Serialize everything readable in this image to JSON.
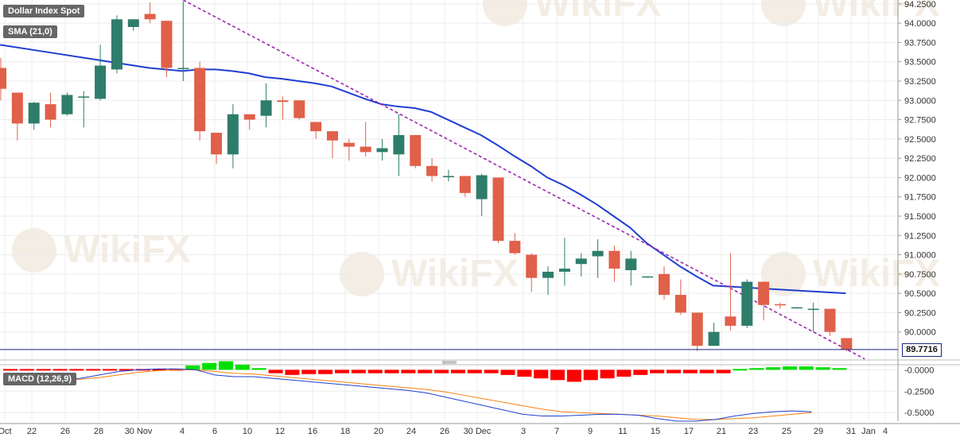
{
  "labels": {
    "main_title": "Dollar Index Spot",
    "sma_label": "SMA (21,0)",
    "macd_label": "MACD (12,26,9)",
    "last_price": "89.7716"
  },
  "colors": {
    "up": "#2e7d6b",
    "down": "#e0604a",
    "sma": "#1f3fd1",
    "trendline": "#9c27b0",
    "macd_line": "#1f3fd1",
    "signal_line": "#ff7f0e",
    "hist_pos": "#00e000",
    "hist_neg": "#ff0000",
    "last_price_line": "#1a237e",
    "grid": "#ececec",
    "watermark": "#f3ede4"
  },
  "watermark": "WikiFX",
  "chart_data": [
    {
      "type": "candlestick",
      "title": "Dollar Index Spot",
      "ylim": [
        89.75,
        94.3
      ],
      "yticks": [
        "94.2500",
        "94.0000",
        "93.7500",
        "93.5000",
        "93.2500",
        "93.0000",
        "92.7500",
        "92.5000",
        "92.2500",
        "92.0000",
        "91.7500",
        "91.5000",
        "91.2500",
        "91.0000",
        "90.7500",
        "90.5000",
        "90.2500",
        "90.0000"
      ],
      "x_tick_labels": [
        "Oct",
        "22",
        "26",
        "28",
        "30 Nov",
        "4",
        "6",
        "10",
        "12",
        "16",
        "18",
        "20",
        "24",
        "26",
        "30 Dec",
        "3",
        "7",
        "9",
        "11",
        "15",
        "17",
        "21",
        "23",
        "25",
        "29",
        "31",
        "Jan",
        "4"
      ],
      "last_price": 89.7716,
      "candles": [
        {
          "o": 93.42,
          "h": 93.55,
          "l": 93.0,
          "c": 93.15
        },
        {
          "o": 93.1,
          "h": 93.1,
          "l": 92.48,
          "c": 92.7
        },
        {
          "o": 92.7,
          "h": 92.98,
          "l": 92.62,
          "c": 92.97
        },
        {
          "o": 92.95,
          "h": 93.1,
          "l": 92.65,
          "c": 92.75
        },
        {
          "o": 92.82,
          "h": 93.1,
          "l": 92.8,
          "c": 93.07
        },
        {
          "o": 93.05,
          "h": 93.12,
          "l": 92.65,
          "c": 93.05
        },
        {
          "o": 93.02,
          "h": 93.72,
          "l": 93.0,
          "c": 93.45
        },
        {
          "o": 93.4,
          "h": 94.1,
          "l": 93.35,
          "c": 94.05
        },
        {
          "o": 93.95,
          "h": 94.05,
          "l": 93.9,
          "c": 94.05
        },
        {
          "o": 94.12,
          "h": 94.27,
          "l": 94.0,
          "c": 94.05
        },
        {
          "o": 94.03,
          "h": 94.03,
          "l": 93.3,
          "c": 93.42
        },
        {
          "o": 93.42,
          "h": 94.28,
          "l": 93.25,
          "c": 93.42
        },
        {
          "o": 93.42,
          "h": 93.5,
          "l": 92.48,
          "c": 92.6
        },
        {
          "o": 92.58,
          "h": 92.58,
          "l": 92.18,
          "c": 92.3
        },
        {
          "o": 92.3,
          "h": 92.95,
          "l": 92.12,
          "c": 92.82
        },
        {
          "o": 92.82,
          "h": 92.82,
          "l": 92.62,
          "c": 92.75
        },
        {
          "o": 92.8,
          "h": 93.22,
          "l": 92.65,
          "c": 93.0
        },
        {
          "o": 93.0,
          "h": 93.05,
          "l": 92.75,
          "c": 92.98
        },
        {
          "o": 93.0,
          "h": 93.0,
          "l": 92.75,
          "c": 92.77
        },
        {
          "o": 92.72,
          "h": 92.72,
          "l": 92.5,
          "c": 92.6
        },
        {
          "o": 92.6,
          "h": 92.6,
          "l": 92.25,
          "c": 92.48
        },
        {
          "o": 92.45,
          "h": 92.5,
          "l": 92.22,
          "c": 92.4
        },
        {
          "o": 92.4,
          "h": 92.72,
          "l": 92.27,
          "c": 92.33
        },
        {
          "o": 92.33,
          "h": 92.5,
          "l": 92.22,
          "c": 92.38
        },
        {
          "o": 92.3,
          "h": 92.82,
          "l": 92.02,
          "c": 92.55
        },
        {
          "o": 92.55,
          "h": 92.55,
          "l": 92.12,
          "c": 92.15
        },
        {
          "o": 92.15,
          "h": 92.25,
          "l": 91.95,
          "c": 92.02
        },
        {
          "o": 92.02,
          "h": 92.1,
          "l": 91.95,
          "c": 92.02
        },
        {
          "o": 92.02,
          "h": 92.02,
          "l": 91.75,
          "c": 91.8
        },
        {
          "o": 91.72,
          "h": 92.05,
          "l": 91.5,
          "c": 92.03
        },
        {
          "o": 92.0,
          "h": 92.0,
          "l": 91.15,
          "c": 91.18
        },
        {
          "o": 91.18,
          "h": 91.28,
          "l": 91.0,
          "c": 91.02
        },
        {
          "o": 91.0,
          "h": 91.02,
          "l": 90.52,
          "c": 90.7
        },
        {
          "o": 90.7,
          "h": 90.85,
          "l": 90.48,
          "c": 90.78
        },
        {
          "o": 90.78,
          "h": 91.22,
          "l": 90.6,
          "c": 90.82
        },
        {
          "o": 90.88,
          "h": 91.02,
          "l": 90.72,
          "c": 90.95
        },
        {
          "o": 90.98,
          "h": 91.2,
          "l": 90.7,
          "c": 91.05
        },
        {
          "o": 91.05,
          "h": 91.12,
          "l": 90.65,
          "c": 90.82
        },
        {
          "o": 90.8,
          "h": 91.05,
          "l": 90.6,
          "c": 90.95
        },
        {
          "o": 90.72,
          "h": 90.72,
          "l": 90.7,
          "c": 90.72
        },
        {
          "o": 90.75,
          "h": 90.85,
          "l": 90.42,
          "c": 90.48
        },
        {
          "o": 90.48,
          "h": 90.68,
          "l": 90.22,
          "c": 90.25
        },
        {
          "o": 90.25,
          "h": 90.25,
          "l": 89.75,
          "c": 89.82
        },
        {
          "o": 89.82,
          "h": 90.12,
          "l": 89.82,
          "c": 90.0
        },
        {
          "o": 90.2,
          "h": 91.02,
          "l": 90.02,
          "c": 90.08
        },
        {
          "o": 90.08,
          "h": 90.68,
          "l": 90.05,
          "c": 90.65
        },
        {
          "o": 90.65,
          "h": 90.65,
          "l": 90.15,
          "c": 90.35
        },
        {
          "o": 90.36,
          "h": 90.38,
          "l": 90.3,
          "c": 90.35
        },
        {
          "o": 90.32,
          "h": 90.32,
          "l": 90.3,
          "c": 90.32
        },
        {
          "o": 90.3,
          "h": 90.38,
          "l": 90.0,
          "c": 90.3
        },
        {
          "o": 90.3,
          "h": 90.3,
          "l": 89.95,
          "c": 90.0
        },
        {
          "o": 89.92,
          "h": 89.92,
          "l": 89.75,
          "c": 89.77
        }
      ],
      "sma_21": [
        93.72,
        93.62,
        93.52,
        93.42,
        93.38,
        93.4,
        93.4,
        93.38,
        93.35,
        93.3,
        93.28,
        93.25,
        93.22,
        93.18,
        93.1,
        93.02,
        92.95,
        92.92,
        92.9,
        92.85,
        92.75,
        92.65,
        92.55,
        92.42,
        92.28,
        92.15,
        92.0,
        91.9,
        91.78,
        91.65,
        91.5,
        91.35,
        91.15,
        91.0,
        90.85,
        90.72,
        90.6,
        90.5
      ],
      "sma_x_index": [
        0,
        3,
        6,
        9,
        11,
        12,
        13,
        14,
        15,
        16,
        17,
        18,
        19,
        20,
        21,
        22,
        23,
        24,
        25,
        26,
        27,
        28,
        29,
        30,
        31,
        32,
        33,
        34,
        35,
        36,
        37,
        38,
        39,
        40,
        41,
        42,
        43,
        51
      ],
      "trendline": {
        "from_index": 11,
        "from_value": 94.3,
        "to_index": 52,
        "to_value": 89.65
      }
    },
    {
      "type": "bar",
      "title": "MACD (12,26,9)",
      "ylim": [
        -0.6,
        0.05
      ],
      "yticks": [
        "-0.0000",
        "-0.2500",
        "-0.5000"
      ],
      "series": [
        {
          "name": "MACD",
          "kind": "line",
          "values": [
            -0.12,
            -0.12,
            -0.12,
            -0.12,
            -0.1,
            -0.06,
            -0.02,
            0.0,
            0.01,
            0.01,
            0.0,
            -0.06,
            -0.08,
            -0.08,
            -0.1,
            -0.12,
            -0.14,
            -0.16,
            -0.18,
            -0.2,
            -0.22,
            -0.24,
            -0.27,
            -0.32,
            -0.37,
            -0.42,
            -0.47,
            -0.52,
            -0.54,
            -0.54,
            -0.53,
            -0.52,
            -0.52,
            -0.53,
            -0.57,
            -0.6,
            -0.6,
            -0.58,
            -0.54,
            -0.51,
            -0.49,
            -0.48,
            -0.49
          ]
        },
        {
          "name": "Signal",
          "kind": "line",
          "values": [
            -0.12,
            -0.12,
            -0.12,
            -0.12,
            -0.11,
            -0.09,
            -0.06,
            -0.03,
            -0.01,
            0.0,
            0.0,
            -0.02,
            -0.04,
            -0.05,
            -0.07,
            -0.09,
            -0.11,
            -0.13,
            -0.15,
            -0.17,
            -0.19,
            -0.21,
            -0.23,
            -0.26,
            -0.3,
            -0.34,
            -0.38,
            -0.42,
            -0.46,
            -0.49,
            -0.5,
            -0.51,
            -0.52,
            -0.53,
            -0.54,
            -0.56,
            -0.58,
            -0.58,
            -0.57,
            -0.56,
            -0.54,
            -0.52,
            -0.5
          ]
        },
        {
          "name": "Histogram",
          "kind": "bar",
          "values": [
            0.0,
            0.0,
            0.0,
            0.0,
            0.0,
            0.0,
            0.0,
            0.0,
            0.0,
            0.0,
            0.0,
            0.05,
            0.08,
            0.1,
            0.06,
            0.02,
            -0.04,
            -0.06,
            -0.05,
            -0.05,
            -0.04,
            -0.04,
            -0.04,
            -0.04,
            -0.04,
            -0.04,
            -0.04,
            -0.04,
            -0.04,
            -0.04,
            -0.06,
            -0.08,
            -0.1,
            -0.12,
            -0.14,
            -0.12,
            -0.1,
            -0.08,
            -0.06,
            -0.04,
            -0.04,
            -0.04,
            -0.04,
            -0.04,
            0.01,
            0.02,
            0.03,
            0.04,
            0.04,
            0.03,
            0.02
          ]
        }
      ]
    }
  ]
}
